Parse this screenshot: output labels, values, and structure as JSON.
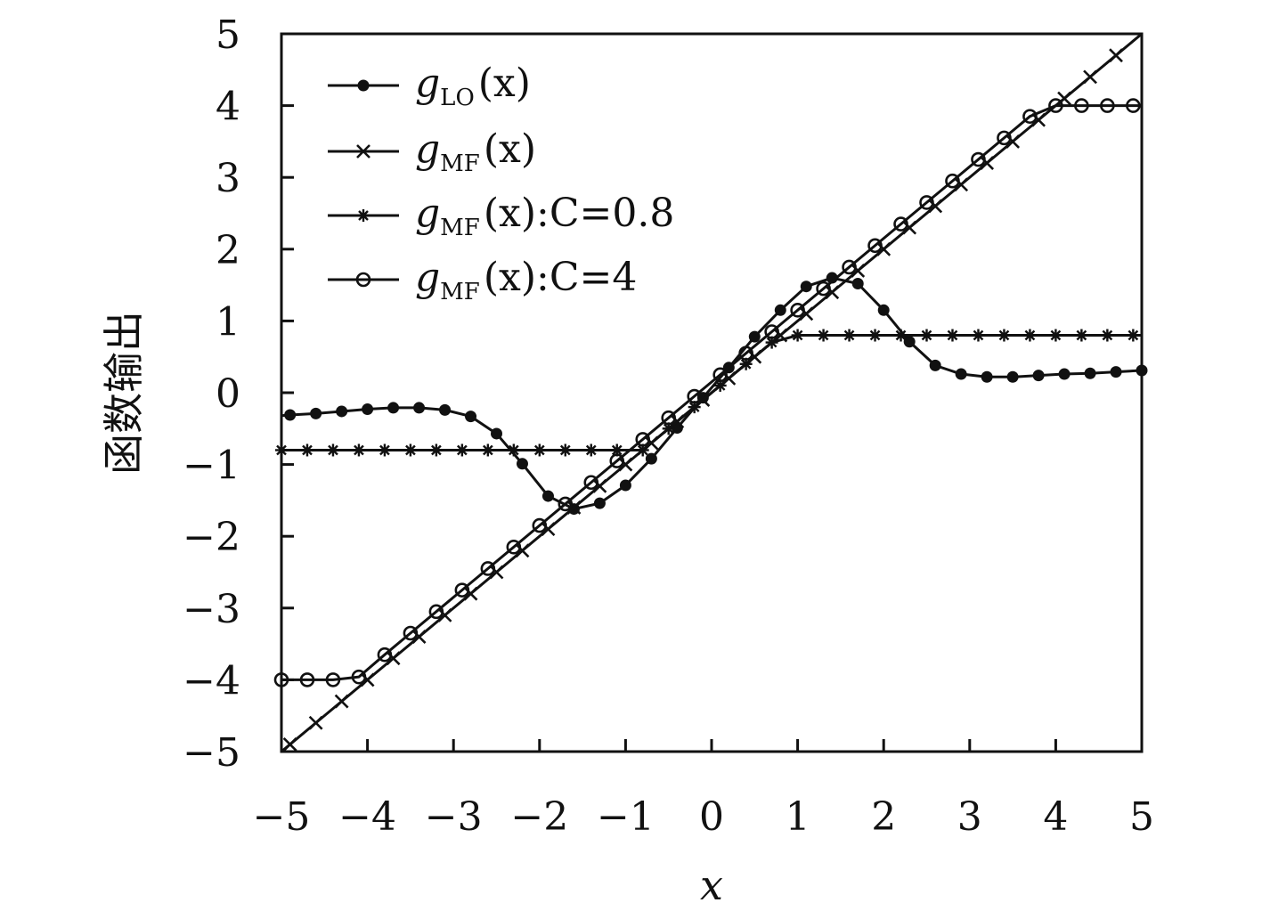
{
  "chart_data": {
    "type": "line",
    "xlabel": "x",
    "ylabel": "函数输出",
    "xlim": [
      -5,
      5
    ],
    "ylim": [
      -5,
      5
    ],
    "xticks": [
      "−5",
      "−4",
      "−3",
      "−2",
      "−1",
      "0",
      "1",
      "2",
      "3",
      "4",
      "5"
    ],
    "yticks": [
      "5",
      "4",
      "3",
      "2",
      "1",
      "0",
      "−1",
      "−2",
      "−3",
      "−4",
      "−5"
    ],
    "grid": false,
    "legend_position": "top-left",
    "line_color": "#111111",
    "series": [
      {
        "name": "g_LO(x)",
        "legend": {
          "main": "g",
          "sub": "LO",
          "tail": "(x)"
        },
        "marker": "dot",
        "x": [
          -4.9,
          -4.6,
          -4.3,
          -4.0,
          -3.7,
          -3.4,
          -3.1,
          -2.8,
          -2.5,
          -2.2,
          -1.9,
          -1.6,
          -1.3,
          -1.0,
          -0.7,
          -0.4,
          -0.1,
          0.2,
          0.5,
          0.8,
          1.1,
          1.4,
          1.7,
          2.0,
          2.3,
          2.6,
          2.9,
          3.2,
          3.5,
          3.8,
          4.1,
          4.4,
          4.7,
          5.0
        ],
        "y": [
          -0.31,
          -0.29,
          -0.26,
          -0.23,
          -0.21,
          -0.21,
          -0.24,
          -0.33,
          -0.57,
          -0.99,
          -1.44,
          -1.62,
          -1.54,
          -1.29,
          -0.92,
          -0.49,
          -0.07,
          0.35,
          0.78,
          1.15,
          1.48,
          1.6,
          1.52,
          1.15,
          0.71,
          0.38,
          0.26,
          0.22,
          0.22,
          0.24,
          0.26,
          0.27,
          0.29,
          0.31
        ]
      },
      {
        "name": "g_MF(x)",
        "legend": {
          "main": "g",
          "sub": "MF",
          "tail": "(x)"
        },
        "marker": "cross",
        "x": [
          -4.9,
          -4.6,
          -4.3,
          -4.0,
          -3.7,
          -3.4,
          -3.1,
          -2.8,
          -2.5,
          -2.2,
          -1.9,
          -1.6,
          -1.3,
          -1.0,
          -0.7,
          -0.4,
          -0.1,
          0.2,
          0.5,
          0.8,
          1.1,
          1.4,
          1.7,
          2.0,
          2.3,
          2.6,
          2.9,
          3.2,
          3.5,
          3.8,
          4.1,
          4.4,
          4.7
        ],
        "y": [
          -4.9,
          -4.6,
          -4.3,
          -4.0,
          -3.7,
          -3.4,
          -3.1,
          -2.8,
          -2.5,
          -2.2,
          -1.9,
          -1.6,
          -1.3,
          -1.0,
          -0.7,
          -0.4,
          -0.1,
          0.2,
          0.5,
          0.8,
          1.1,
          1.4,
          1.7,
          2.0,
          2.3,
          2.6,
          2.9,
          3.2,
          3.5,
          3.8,
          4.1,
          4.4,
          4.7
        ]
      },
      {
        "name": "g_MF(x):C=0.8",
        "legend": {
          "main": "g",
          "sub": "MF",
          "tail": "(x):C=0.8"
        },
        "marker": "asterisk",
        "x": [
          -5.0,
          -4.7,
          -4.4,
          -4.1,
          -3.8,
          -3.5,
          -3.2,
          -2.9,
          -2.6,
          -2.3,
          -2.0,
          -1.7,
          -1.4,
          -1.1,
          -0.8,
          -0.5,
          -0.2,
          0.1,
          0.4,
          0.7,
          1.0,
          1.3,
          1.6,
          1.9,
          2.2,
          2.5,
          2.8,
          3.1,
          3.4,
          3.7,
          4.0,
          4.3,
          4.6,
          4.9
        ],
        "y": [
          -0.8,
          -0.8,
          -0.8,
          -0.8,
          -0.8,
          -0.8,
          -0.8,
          -0.8,
          -0.8,
          -0.8,
          -0.8,
          -0.8,
          -0.8,
          -0.8,
          -0.8,
          -0.5,
          -0.2,
          0.1,
          0.4,
          0.7,
          0.8,
          0.8,
          0.8,
          0.8,
          0.8,
          0.8,
          0.8,
          0.8,
          0.8,
          0.8,
          0.8,
          0.8,
          0.8,
          0.8
        ]
      },
      {
        "name": "g_MF(x):C=4",
        "legend": {
          "main": "g",
          "sub": "MF",
          "tail": "(x):C=4"
        },
        "marker": "circle",
        "x": [
          -5.0,
          -4.7,
          -4.4,
          -4.1,
          -3.8,
          -3.5,
          -3.2,
          -2.9,
          -2.6,
          -2.3,
          -2.0,
          -1.7,
          -1.4,
          -1.1,
          -0.8,
          -0.5,
          -0.2,
          0.1,
          0.4,
          0.7,
          1.0,
          1.3,
          1.6,
          1.9,
          2.2,
          2.5,
          2.8,
          3.1,
          3.4,
          3.7,
          4.0,
          4.3,
          4.6,
          4.9
        ],
        "y": [
          -4.0,
          -4.0,
          -4.0,
          -3.96,
          -3.65,
          -3.35,
          -3.05,
          -2.75,
          -2.45,
          -2.15,
          -1.85,
          -1.55,
          -1.25,
          -0.95,
          -0.65,
          -0.35,
          -0.05,
          0.25,
          0.55,
          0.85,
          1.15,
          1.45,
          1.75,
          2.05,
          2.35,
          2.65,
          2.95,
          3.25,
          3.55,
          3.85,
          4.0,
          4.0,
          4.0,
          4.0
        ]
      }
    ]
  }
}
